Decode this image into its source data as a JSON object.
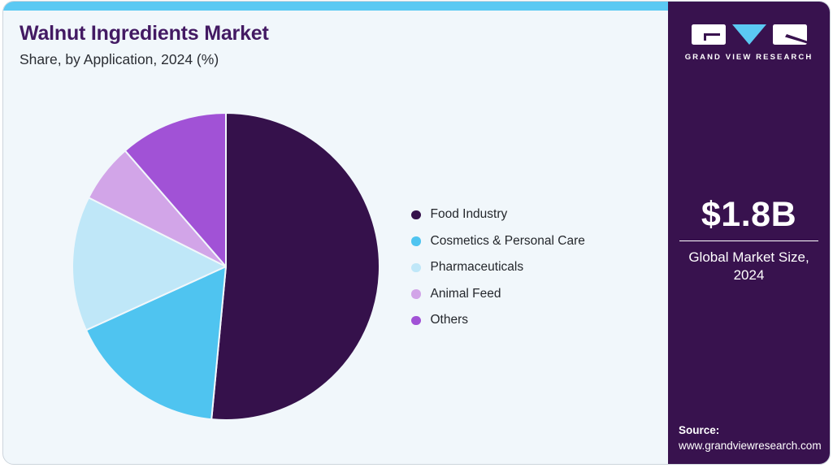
{
  "header": {
    "title": "Walnut Ingredients Market",
    "subtitle": "Share, by Application, 2024 (%)"
  },
  "chart_data": {
    "type": "pie",
    "title": "Walnut Ingredients Market Share, by Application, 2024 (%)",
    "unit": "%",
    "start_angle_deg": 0,
    "direction": "clockwise",
    "legend_position": "right",
    "segments": [
      {
        "label": "Food Industry",
        "value": 51.5,
        "color": "#35114B"
      },
      {
        "label": "Cosmetics & Personal Care",
        "value": 16.7,
        "color": "#4FC4F0"
      },
      {
        "label": "Pharmaceuticals",
        "value": 14.2,
        "color": "#BFE7F8"
      },
      {
        "label": "Animal Feed",
        "value": 6.2,
        "color": "#D2A5E8"
      },
      {
        "label": "Others",
        "value": 11.4,
        "color": "#A152D6"
      }
    ]
  },
  "sidebar": {
    "brand": "GRAND VIEW RESEARCH",
    "market_size": {
      "value": "$1.8B",
      "label": "Global Market Size, 2024"
    },
    "source": {
      "label": "Source:",
      "url": "www.grandviewresearch.com"
    }
  },
  "colors": {
    "accent_blue": "#5BC9F3",
    "sidebar_purple": "#38124E",
    "title_purple": "#431A63",
    "card_bg": "#F1F7FB"
  }
}
